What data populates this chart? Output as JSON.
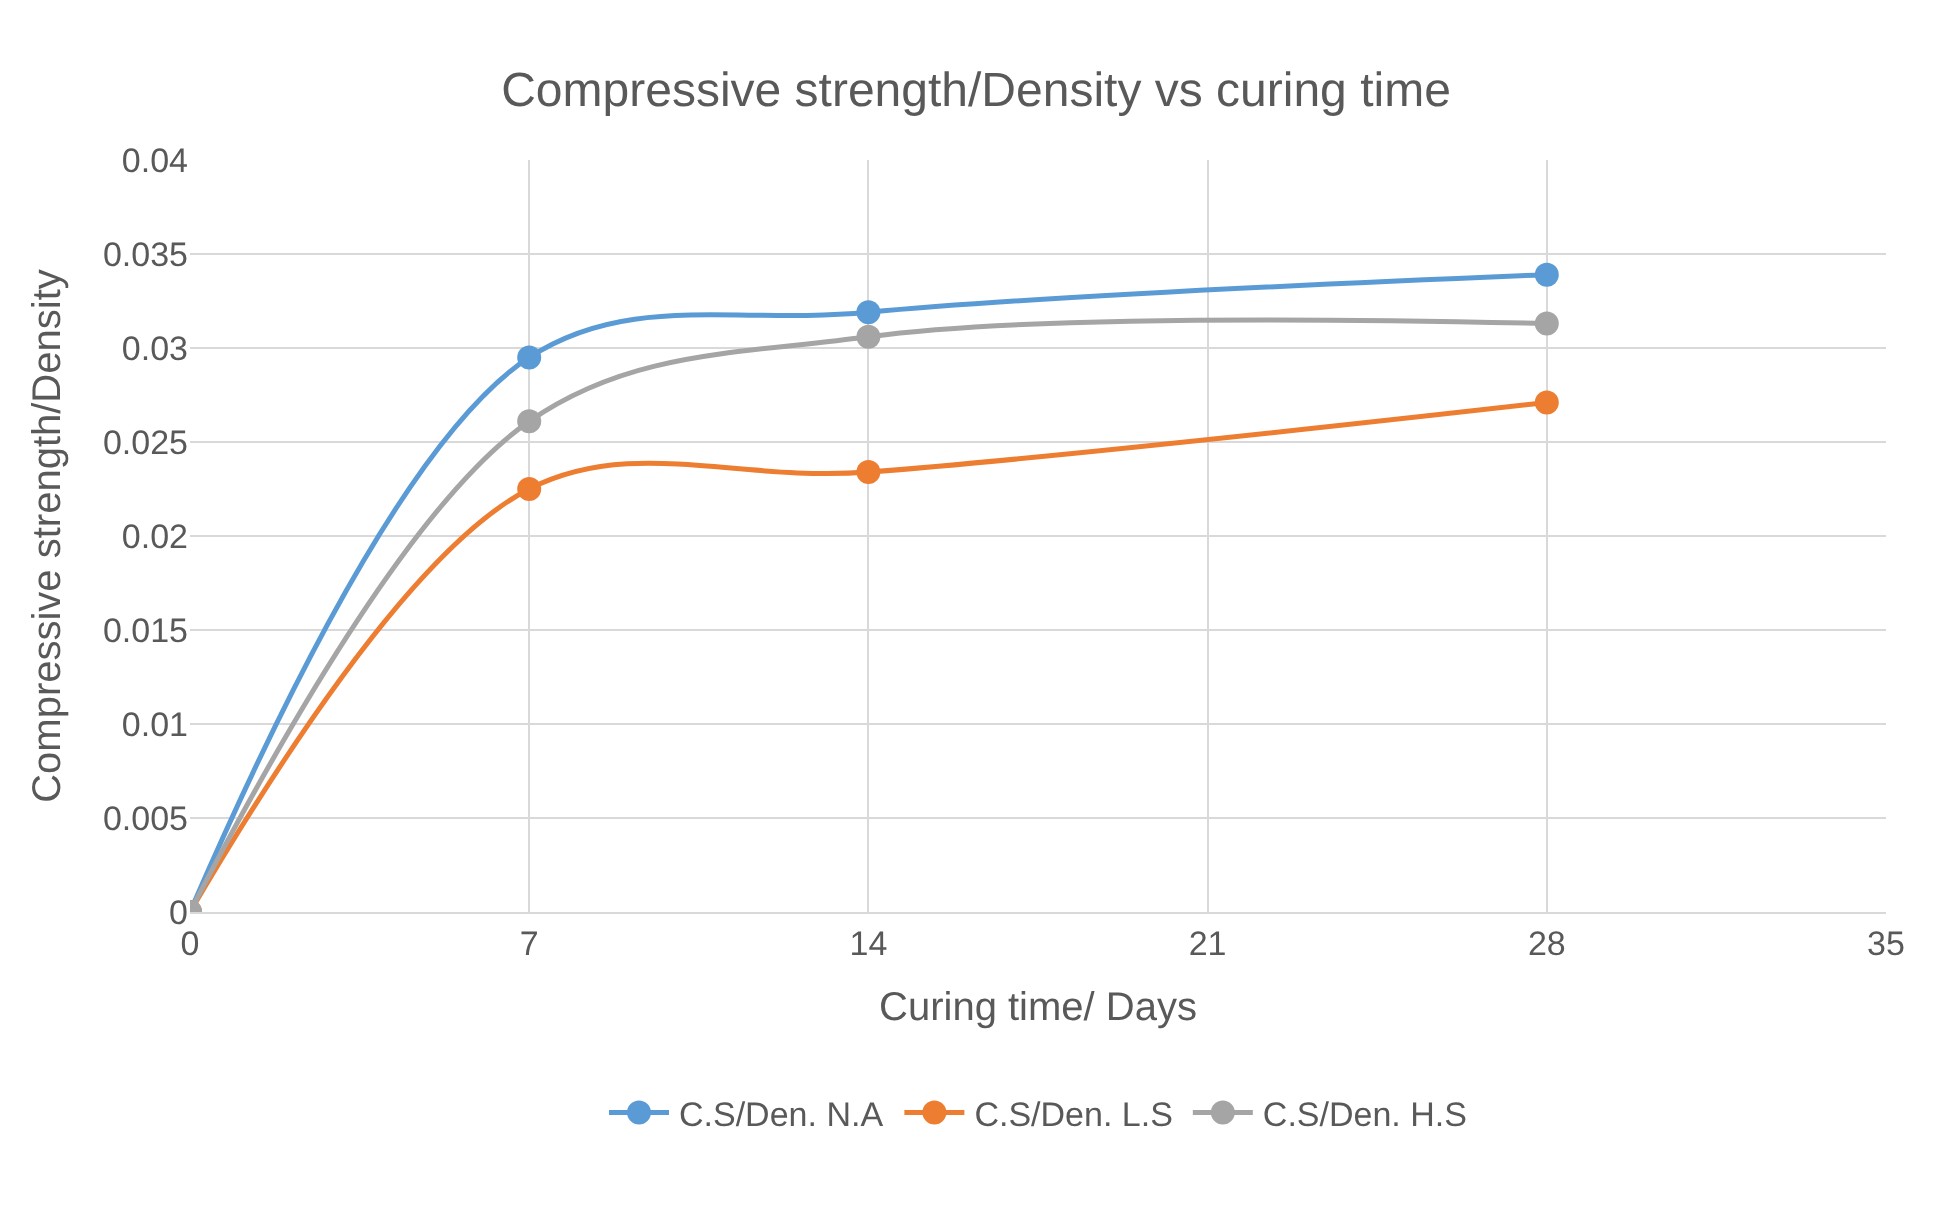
{
  "chart_data": {
    "type": "line",
    "title": "Compressive strength/Density vs curing time",
    "xlabel": "Curing time/ Days",
    "ylabel": "Compressive strength/Density",
    "x": [
      0,
      7,
      14,
      28
    ],
    "series": [
      {
        "name": "C.S/Den. N.A",
        "color": "#5b9bd5",
        "values": [
          0,
          0.0295,
          0.0319,
          0.0339
        ]
      },
      {
        "name": "C.S/Den. L.S",
        "color": "#ed7d31",
        "values": [
          0,
          0.0225,
          0.0234,
          0.0271
        ]
      },
      {
        "name": "C.S/Den. H.S",
        "color": "#a5a5a5",
        "values": [
          0,
          0.0261,
          0.0306,
          0.0313
        ]
      }
    ],
    "xlim": [
      0,
      35
    ],
    "xticks": [
      0,
      7,
      14,
      21,
      28,
      35
    ],
    "ylim": [
      0,
      0.04
    ],
    "yticks": [
      0,
      0.005,
      0.01,
      0.015,
      0.02,
      0.025,
      0.03,
      0.035,
      0.04
    ],
    "grid": true,
    "legend": "bottom",
    "marker": "circle",
    "line_style": "solid"
  }
}
